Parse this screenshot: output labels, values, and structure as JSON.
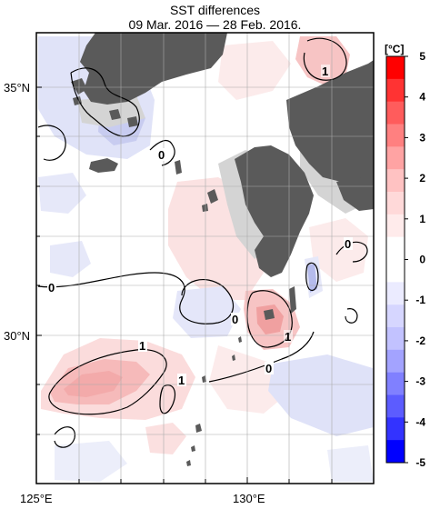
{
  "title": {
    "line1": "SST differences",
    "line2": "09 Mar. 2016 — 28 Feb. 2016."
  },
  "axes": {
    "lat_labels": [
      "35°N",
      "30°N"
    ],
    "lon_labels": [
      "125°E",
      "130°E"
    ]
  },
  "colorbar": {
    "unit": "[°C]",
    "ticks": [
      "5",
      "4",
      "3",
      "2",
      "1",
      "0",
      "-1",
      "-2",
      "-3",
      "-4",
      "-5"
    ],
    "colors_warm": [
      "#ff0000",
      "#ff3333",
      "#ff5c5c",
      "#ff8080",
      "#ffa3a3",
      "#ffc2c2",
      "#ffd9d9",
      "#ffebeb"
    ],
    "colors_cold": [
      "#ebebff",
      "#d6d6ff",
      "#c2c2ff",
      "#a3a3ff",
      "#8080ff",
      "#5c5cff",
      "#3333ff",
      "#0000ff"
    ]
  },
  "contour_labels": {
    "c1": "0",
    "c2": "1",
    "c3": "0",
    "c4": "0",
    "c5": "1",
    "c6": "1",
    "c7": "0",
    "c8": "1",
    "c9": "0"
  },
  "colors": {
    "land": "#5a5a5a",
    "shadow": "#d4d4d4",
    "warm": "#f9d3d3",
    "warm2": "#f3b0b0",
    "cold": "#dde0f7",
    "cold2": "#c4c8ef",
    "grid": "#aaaaaa"
  }
}
